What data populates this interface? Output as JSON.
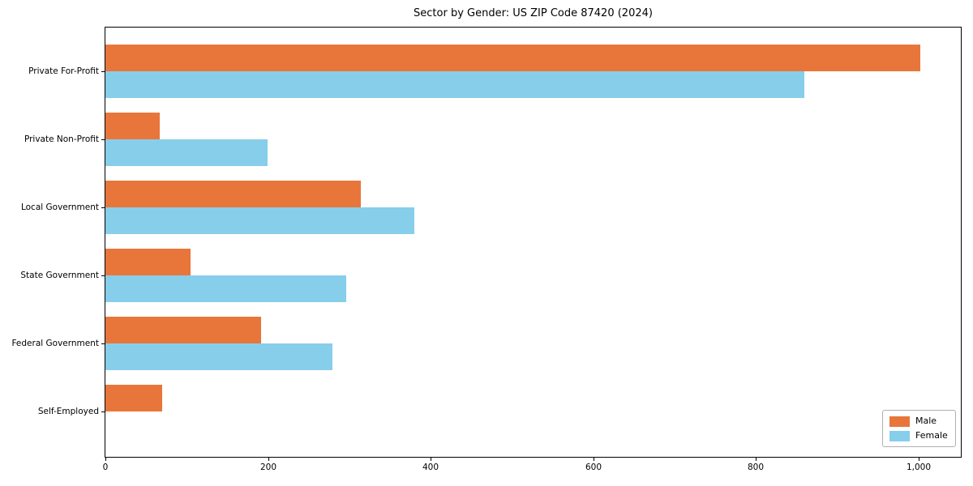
{
  "figure": {
    "title": "Sector by Gender: US ZIP Code 87420 (2024)"
  },
  "chart_data": {
    "type": "bar",
    "orientation": "horizontal",
    "title": "Sector by Gender: US ZIP Code 87420 (2024)",
    "xlabel": "",
    "ylabel": "",
    "categories": [
      "Private For-Profit",
      "Private Non-Profit",
      "Local Government",
      "State Government",
      "Federal Government",
      "Self-Employed"
    ],
    "series": [
      {
        "name": "Male",
        "color": "#E8763A",
        "values": [
          1002,
          67,
          314,
          105,
          191,
          70
        ]
      },
      {
        "name": "Female",
        "color": "#87CEEB",
        "values": [
          860,
          199,
          380,
          296,
          279,
          0
        ]
      }
    ],
    "xlim": [
      0,
      1052
    ],
    "xticks": [
      0,
      200,
      400,
      600,
      800,
      1000
    ],
    "xtick_labels": [
      "0",
      "200",
      "400",
      "600",
      "800",
      "1,000"
    ],
    "grid": false,
    "legend": {
      "position": "lower right",
      "entries": [
        "Male",
        "Female"
      ]
    }
  }
}
